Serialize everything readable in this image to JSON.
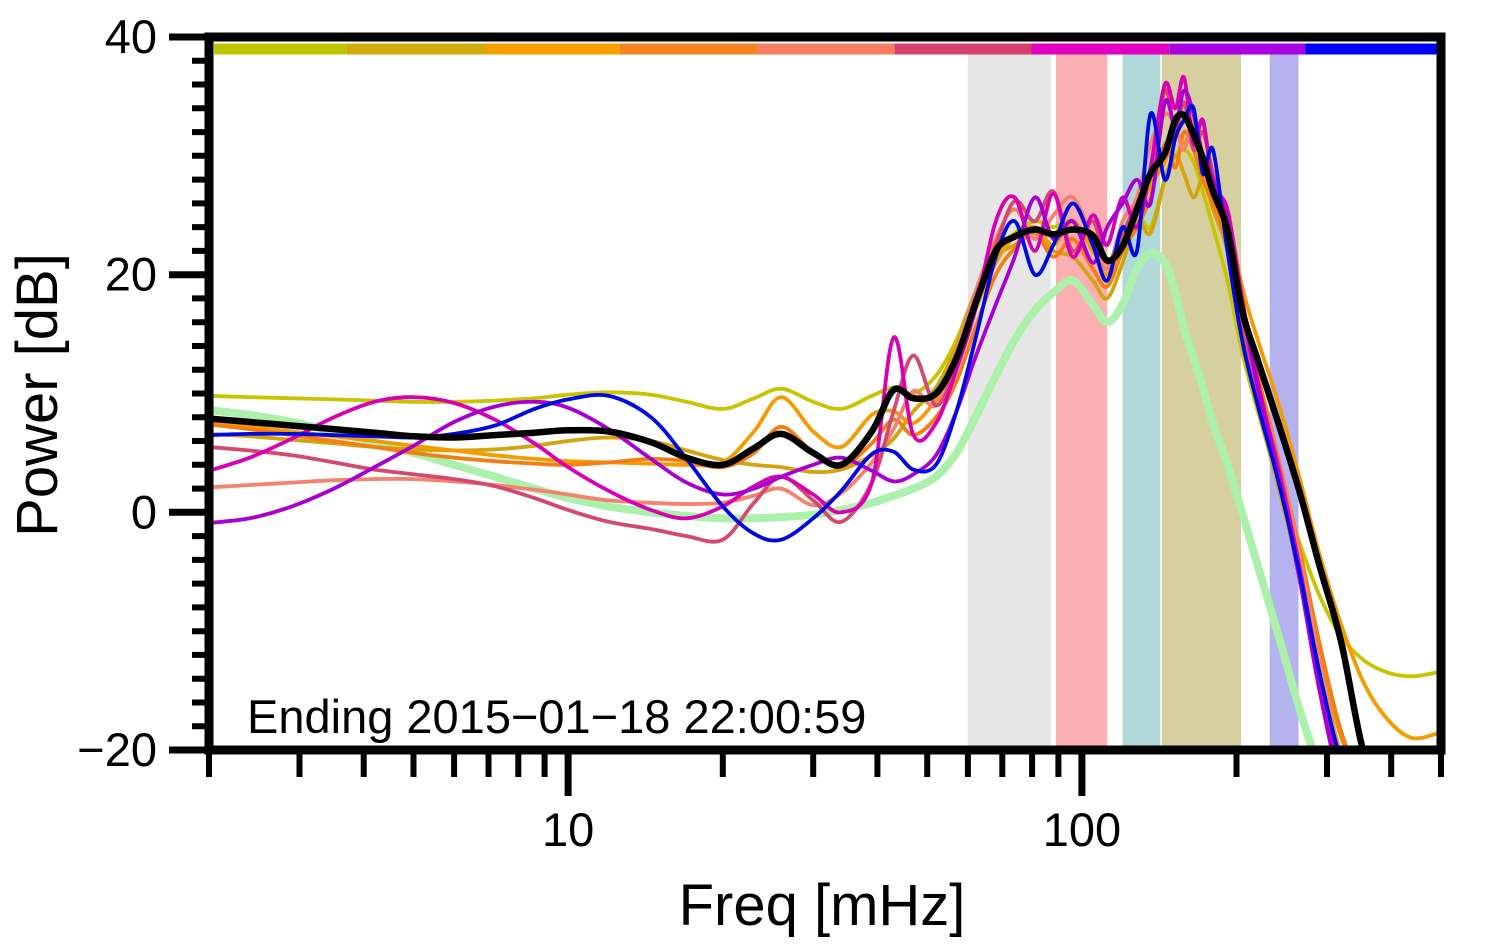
{
  "annotation": {
    "text": "Ending 2015−01−18 22:00:59"
  },
  "chart_data": {
    "type": "line",
    "title": "",
    "xlabel": "Freq [mHz]",
    "ylabel": "Power [dB]",
    "xscale": "log",
    "xlim": [
      2,
      500
    ],
    "ylim": [
      -20,
      40
    ],
    "grid": "off",
    "legend": "none",
    "x_major_ticks": [
      10,
      100
    ],
    "x_minor_ticks": [
      2,
      3,
      4,
      5,
      6,
      7,
      8,
      9,
      20,
      30,
      40,
      50,
      60,
      70,
      80,
      90,
      200,
      300,
      400,
      500
    ],
    "y_major_ticks": [
      40,
      20,
      0,
      -20
    ],
    "y_minor_tick_step": 2,
    "frequency_bands": [
      {
        "name": "band-gray",
        "color": "#e6e6e6",
        "f_start": 60,
        "f_end": 87
      },
      {
        "name": "band-pink",
        "color": "#fab0b0",
        "f_start": 89,
        "f_end": 112
      },
      {
        "name": "band-teal",
        "color": "#b0d8d8",
        "f_start": 120,
        "f_end": 142
      },
      {
        "name": "band-olive",
        "color": "#d6d0a0",
        "f_start": 143,
        "f_end": 204
      },
      {
        "name": "band-lavender",
        "color": "#b5b2f0",
        "f_start": 232,
        "f_end": 264
      }
    ],
    "colorbar_segments": [
      {
        "color": "#bfc400",
        "f_start": 2,
        "f_end": 3.7
      },
      {
        "color": "#d0ab10",
        "f_start": 3.7,
        "f_end": 6.9
      },
      {
        "color": "#f5a000",
        "f_start": 6.9,
        "f_end": 12.6
      },
      {
        "color": "#f58220",
        "f_start": 12.6,
        "f_end": 23.4
      },
      {
        "color": "#f87c63",
        "f_start": 23.4,
        "f_end": 43.2
      },
      {
        "color": "#d4416e",
        "f_start": 43.2,
        "f_end": 79.8
      },
      {
        "color": "#e000c0",
        "f_start": 79.8,
        "f_end": 148
      },
      {
        "color": "#a800e0",
        "f_start": 148,
        "f_end": 272
      },
      {
        "color": "#0000f5",
        "f_start": 272,
        "f_end": 500
      }
    ],
    "x_mHz": [
      2,
      2.4,
      2.9,
      3.5,
      4.2,
      5,
      6,
      7.2,
      8.6,
      10,
      12,
      14.5,
      17,
      20,
      23,
      26,
      30,
      34,
      39,
      43,
      47,
      52,
      57,
      62,
      68,
      74,
      81,
      88,
      96,
      105,
      112,
      120,
      128,
      136,
      145,
      152,
      158,
      165,
      172,
      180,
      192,
      205,
      220,
      240,
      265,
      290,
      320,
      355,
      395,
      440,
      500
    ],
    "series": [
      {
        "name": "green-reference",
        "color": "#abf0ab",
        "line_width": 8,
        "values": [
          8.6,
          8.2,
          7.6,
          6.8,
          5.9,
          5.0,
          4.0,
          3.0,
          2.0,
          1.2,
          0.5,
          0.0,
          -0.3,
          -0.5,
          -0.5,
          -0.4,
          -0.2,
          0.2,
          0.8,
          1.4,
          2.0,
          3.0,
          5.0,
          8.0,
          11.5,
          14.5,
          17.0,
          18.5,
          19.5,
          17.5,
          16.0,
          17.5,
          20.5,
          21.8,
          21.0,
          18.5,
          15.5,
          13.0,
          10.5,
          7.5,
          4.0,
          0.0,
          -4.5,
          -10.0,
          -16.5,
          -21.5,
          -25.0,
          -25.0,
          -25.0,
          -25.0,
          -25.0
        ]
      },
      {
        "name": "yellow",
        "color": "#c9c400",
        "line_width": 3.8,
        "values": [
          9.8,
          9.7,
          9.6,
          9.5,
          9.4,
          9.3,
          9.3,
          9.4,
          9.6,
          9.9,
          10.1,
          9.9,
          9.3,
          8.7,
          9.6,
          10.4,
          9.3,
          8.7,
          9.8,
          10.5,
          10.0,
          11.5,
          14.5,
          18.5,
          22.0,
          23.5,
          24.5,
          24.0,
          24.5,
          22.5,
          21.0,
          23.0,
          25.0,
          24.0,
          28.0,
          30.0,
          30.5,
          29.5,
          27.0,
          24.0,
          19.5,
          13.5,
          8.5,
          3.0,
          -2.5,
          -7.0,
          -10.5,
          -12.5,
          -13.5,
          -13.8,
          -13.4
        ]
      },
      {
        "name": "mustard",
        "color": "#d2a40e",
        "line_width": 3.8,
        "values": [
          6.6,
          6.4,
          6.1,
          5.8,
          5.5,
          5.3,
          5.2,
          5.3,
          5.6,
          6.0,
          6.3,
          6.0,
          5.2,
          4.4,
          4.0,
          3.8,
          3.4,
          3.6,
          4.8,
          6.2,
          8.5,
          10.5,
          14.0,
          18.5,
          21.5,
          22.5,
          23.5,
          22.0,
          21.5,
          19.5,
          18.0,
          21.0,
          24.5,
          23.5,
          28.0,
          30.0,
          28.5,
          26.5,
          28.0,
          25.5,
          22.0,
          15.5,
          9.0,
          2.5,
          -5.0,
          -12.0,
          -19.0,
          -23.0,
          -23.0,
          -23.0,
          -23.0
        ]
      },
      {
        "name": "orange",
        "color": "#f59b00",
        "line_width": 3.8,
        "values": [
          7.5,
          7.2,
          6.8,
          6.4,
          6.0,
          5.6,
          5.2,
          4.8,
          4.5,
          4.3,
          4.2,
          4.1,
          4.0,
          4.2,
          6.8,
          9.7,
          6.8,
          5.5,
          8.2,
          8.5,
          7.5,
          9.5,
          12.5,
          17.0,
          21.0,
          23.2,
          24.0,
          22.5,
          24.5,
          22.0,
          20.0,
          23.0,
          25.0,
          27.5,
          29.5,
          32.0,
          31.0,
          32.5,
          29.5,
          28.0,
          25.0,
          19.0,
          14.5,
          9.5,
          3.0,
          -3.5,
          -9.5,
          -14.5,
          -17.5,
          -19.0,
          -18.5
        ]
      },
      {
        "name": "dark-orange",
        "color": "#f57d14",
        "line_width": 3.8,
        "values": [
          7.4,
          7.0,
          6.5,
          6.0,
          5.5,
          5.0,
          4.6,
          4.3,
          4.1,
          4.0,
          4.2,
          4.5,
          4.3,
          3.8,
          5.0,
          7.2,
          5.0,
          3.8,
          5.8,
          7.8,
          6.5,
          8.0,
          11.0,
          15.5,
          20.0,
          22.2,
          23.5,
          21.5,
          23.0,
          20.5,
          19.0,
          22.0,
          24.0,
          26.5,
          31.0,
          29.0,
          32.0,
          30.5,
          28.0,
          26.0,
          22.5,
          16.5,
          11.5,
          5.0,
          -3.0,
          -11.0,
          -18.5,
          -23.0,
          -23.0,
          -23.0,
          -23.0
        ]
      },
      {
        "name": "salmon",
        "color": "#f5826e",
        "line_width": 3.8,
        "values": [
          2.1,
          2.3,
          2.5,
          2.7,
          2.8,
          2.8,
          2.6,
          2.3,
          1.9,
          1.5,
          1.0,
          0.8,
          0.7,
          0.8,
          1.4,
          2.0,
          0.6,
          1.6,
          4.2,
          7.0,
          10.2,
          9.0,
          13.5,
          18.5,
          23.0,
          25.5,
          23.0,
          25.0,
          26.5,
          23.0,
          20.5,
          24.5,
          26.5,
          31.0,
          33.5,
          32.5,
          30.5,
          33.0,
          29.0,
          27.0,
          23.5,
          16.5,
          10.5,
          5.0,
          -3.5,
          -12.5,
          -20.5,
          -24.0,
          -24.0,
          -24.0,
          -24.0
        ]
      },
      {
        "name": "rose",
        "color": "#d4496e",
        "line_width": 3.8,
        "values": [
          5.5,
          5.2,
          4.8,
          4.2,
          3.6,
          3.2,
          2.8,
          2.2,
          1.2,
          0.2,
          -0.8,
          -1.4,
          -2.0,
          -2.3,
          0.8,
          3.0,
          1.0,
          -0.8,
          2.5,
          8.5,
          13.2,
          9.0,
          12.5,
          18.0,
          22.5,
          26.2,
          24.5,
          27.0,
          22.0,
          24.5,
          21.0,
          23.5,
          26.0,
          28.5,
          35.5,
          32.0,
          34.5,
          30.5,
          32.0,
          28.5,
          24.0,
          16.0,
          10.0,
          4.5,
          -4.5,
          -13.5,
          -21.5,
          -25.0,
          -25.0,
          -25.0,
          -25.0
        ]
      },
      {
        "name": "magenta",
        "color": "#d800b4",
        "line_width": 3.8,
        "values": [
          3.5,
          4.6,
          6.2,
          8.0,
          9.3,
          9.7,
          9.2,
          7.8,
          5.8,
          3.8,
          1.8,
          0.2,
          -0.5,
          0.5,
          2.2,
          3.0,
          1.5,
          0.0,
          2.5,
          14.7,
          6.5,
          7.5,
          12.0,
          17.0,
          24.5,
          26.5,
          22.0,
          26.8,
          21.5,
          25.0,
          22.5,
          26.5,
          24.0,
          29.0,
          36.0,
          34.0,
          36.6,
          31.0,
          33.0,
          27.5,
          25.5,
          18.0,
          11.0,
          4.0,
          -4.5,
          -14.0,
          -22.0,
          -26.0,
          -26.0,
          -26.0,
          -26.0
        ]
      },
      {
        "name": "purple",
        "color": "#a800d2",
        "line_width": 3.8,
        "values": [
          -0.9,
          -0.5,
          0.5,
          2.0,
          3.8,
          5.6,
          7.6,
          8.9,
          9.3,
          8.8,
          7.0,
          4.5,
          2.5,
          1.5,
          2.0,
          3.0,
          4.0,
          4.6,
          3.5,
          2.6,
          3.2,
          4.8,
          8.5,
          13.0,
          17.5,
          21.5,
          26.5,
          23.0,
          24.5,
          21.0,
          24.0,
          26.0,
          28.0,
          26.0,
          34.5,
          32.5,
          35.5,
          33.5,
          30.0,
          28.0,
          24.5,
          17.5,
          10.5,
          3.5,
          -5.5,
          -15.0,
          -23.0,
          -26.0,
          -26.0,
          -26.0,
          -26.0
        ]
      },
      {
        "name": "blue",
        "color": "#0009e1",
        "line_width": 3.8,
        "values": [
          6.5,
          6.6,
          6.6,
          6.5,
          6.4,
          6.3,
          6.6,
          7.3,
          8.7,
          9.5,
          9.8,
          8.0,
          4.5,
          0.5,
          -1.8,
          -2.3,
          -0.5,
          1.8,
          4.9,
          5.1,
          3.6,
          4.0,
          8.5,
          14.5,
          21.5,
          24.5,
          20.0,
          22.5,
          26.0,
          22.5,
          19.5,
          24.0,
          22.0,
          33.5,
          28.0,
          31.5,
          33.0,
          34.0,
          28.5,
          30.5,
          22.0,
          14.5,
          9.0,
          3.0,
          -5.0,
          -13.5,
          -21.0,
          -25.0,
          -25.0,
          -25.0,
          -25.0
        ]
      },
      {
        "name": "black-mean",
        "color": "#000000",
        "line_width": 6.5,
        "values": [
          7.9,
          7.6,
          7.3,
          7.0,
          6.7,
          6.4,
          6.3,
          6.5,
          6.7,
          6.9,
          6.8,
          5.9,
          4.6,
          4.0,
          5.4,
          6.6,
          5.0,
          4.0,
          6.8,
          10.3,
          9.6,
          10.0,
          13.0,
          17.5,
          22.0,
          23.2,
          23.8,
          23.4,
          23.8,
          23.3,
          21.2,
          22.4,
          25.5,
          28.5,
          30.2,
          33.0,
          33.4,
          31.8,
          29.8,
          27.0,
          23.8,
          17.0,
          12.8,
          7.8,
          1.8,
          -4.5,
          -11.0,
          -20.5,
          -24.0,
          -24.0,
          -24.0
        ]
      }
    ]
  }
}
